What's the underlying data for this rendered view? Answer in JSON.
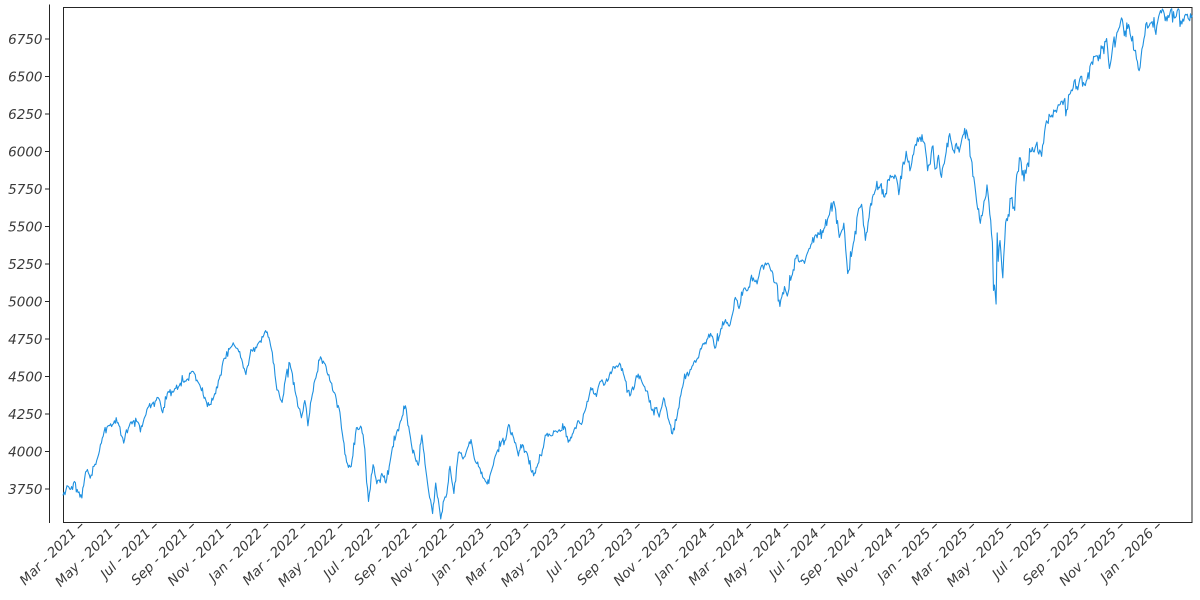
{
  "chart_data": {
    "type": "line",
    "title": "",
    "xlabel": "",
    "ylabel": "",
    "grid": false,
    "legend": null,
    "background": "#ffffff",
    "line_color": "#1E90E0",
    "frame_color": "#262626",
    "tick_label_color": "#3A3A3A",
    "y_tick_labels": [
      3750,
      4000,
      4250,
      4500,
      4750,
      5000,
      5250,
      5500,
      5750,
      6000,
      6250,
      6500,
      6750
    ],
    "x_tick_labels": [
      "Mar - 2021",
      "May - 2021",
      "Jul - 2021",
      "Sep - 2021",
      "Nov - 2021",
      "Jan - 2022",
      "Mar - 2022",
      "May - 2022",
      "Jul - 2022",
      "Sep - 2022",
      "Nov - 2022",
      "Jan - 2023",
      "Mar - 2023",
      "May - 2023",
      "Jul - 2023",
      "Sep - 2023",
      "Nov - 2023",
      "Jan - 2024",
      "Mar - 2024",
      "May - 2024",
      "Jul - 2024",
      "Sep - 2024",
      "Nov - 2024",
      "Jan - 2025",
      "Mar - 2025",
      "May - 2025",
      "Jul - 2025",
      "Sep - 2025",
      "Nov - 2025",
      "Jan - 2026"
    ],
    "x_tick_month_positions": [
      2,
      4,
      6,
      8,
      10,
      12,
      14,
      16,
      18,
      20,
      22,
      24,
      26,
      28,
      30,
      32,
      34,
      36,
      38,
      40,
      42,
      44,
      46,
      48,
      50,
      52,
      54,
      56,
      58,
      60
    ],
    "xlim_months_since_2021_01": [
      1.085,
      61.87
    ],
    "ylim": [
      3523,
      6963
    ],
    "points": [
      [
        1.09,
        3710
      ],
      [
        1.3,
        3772
      ],
      [
        1.5,
        3748
      ],
      [
        1.7,
        3800
      ],
      [
        1.9,
        3726
      ],
      [
        2.1,
        3690
      ],
      [
        2.25,
        3820
      ],
      [
        2.4,
        3880
      ],
      [
        2.55,
        3822
      ],
      [
        2.75,
        3900
      ],
      [
        2.95,
        3958
      ],
      [
        3.2,
        4090
      ],
      [
        3.5,
        4170
      ],
      [
        3.8,
        4185
      ],
      [
        4.05,
        4192
      ],
      [
        4.35,
        4056
      ],
      [
        4.6,
        4155
      ],
      [
        4.85,
        4200
      ],
      [
        5.15,
        4190
      ],
      [
        5.35,
        4166
      ],
      [
        5.6,
        4280
      ],
      [
        5.9,
        4320
      ],
      [
        6.2,
        4360
      ],
      [
        6.45,
        4258
      ],
      [
        6.75,
        4400
      ],
      [
        7.0,
        4395
      ],
      [
        7.35,
        4440
      ],
      [
        7.65,
        4470
      ],
      [
        8.05,
        4535
      ],
      [
        8.45,
        4443
      ],
      [
        8.68,
        4355
      ],
      [
        8.95,
        4307
      ],
      [
        9.2,
        4363
      ],
      [
        9.5,
        4486
      ],
      [
        9.75,
        4620
      ],
      [
        10.15,
        4698
      ],
      [
        10.45,
        4688
      ],
      [
        10.75,
        4594
      ],
      [
        10.93,
        4513
      ],
      [
        11.2,
        4680
      ],
      [
        11.55,
        4712
      ],
      [
        11.9,
        4778
      ],
      [
        12.08,
        4797
      ],
      [
        12.35,
        4660
      ],
      [
        12.6,
        4410
      ],
      [
        12.88,
        4327
      ],
      [
        13.1,
        4515
      ],
      [
        13.3,
        4587
      ],
      [
        13.62,
        4380
      ],
      [
        13.78,
        4288
      ],
      [
        13.92,
        4225
      ],
      [
        14.1,
        4340
      ],
      [
        14.27,
        4171
      ],
      [
        14.6,
        4456
      ],
      [
        14.95,
        4631
      ],
      [
        15.2,
        4583
      ],
      [
        15.5,
        4460
      ],
      [
        15.7,
        4392
      ],
      [
        15.95,
        4287
      ],
      [
        16.08,
        4155
      ],
      [
        16.35,
        3930
      ],
      [
        16.6,
        3900
      ],
      [
        16.88,
        4158
      ],
      [
        17.15,
        4160
      ],
      [
        17.33,
        4017
      ],
      [
        17.53,
        3667
      ],
      [
        17.78,
        3912
      ],
      [
        17.98,
        3785
      ],
      [
        18.25,
        3854
      ],
      [
        18.47,
        3790
      ],
      [
        18.78,
        3998
      ],
      [
        19.05,
        4130
      ],
      [
        19.3,
        4210
      ],
      [
        19.52,
        4305
      ],
      [
        19.83,
        4057
      ],
      [
        20.05,
        3955
      ],
      [
        20.22,
        3908
      ],
      [
        20.4,
        4110
      ],
      [
        20.62,
        3873
      ],
      [
        20.82,
        3693
      ],
      [
        20.98,
        3586
      ],
      [
        21.15,
        3790
      ],
      [
        21.42,
        3550
      ],
      [
        21.6,
        3677
      ],
      [
        21.75,
        3720
      ],
      [
        21.92,
        3901
      ],
      [
        22.13,
        3720
      ],
      [
        22.37,
        3993
      ],
      [
        22.62,
        3950
      ],
      [
        22.87,
        4026
      ],
      [
        23.05,
        4080
      ],
      [
        23.28,
        3934
      ],
      [
        23.5,
        3895
      ],
      [
        23.72,
        3822
      ],
      [
        23.92,
        3783
      ],
      [
        24.1,
        3853
      ],
      [
        24.45,
        3999
      ],
      [
        24.72,
        4070
      ],
      [
        24.92,
        4077
      ],
      [
        25.08,
        4180
      ],
      [
        25.35,
        4090
      ],
      [
        25.6,
        3970
      ],
      [
        25.82,
        4046
      ],
      [
        26.08,
        3986
      ],
      [
        26.32,
        3862
      ],
      [
        26.47,
        3856
      ],
      [
        26.65,
        3917
      ],
      [
        26.85,
        3971
      ],
      [
        27.05,
        4109
      ],
      [
        27.35,
        4105
      ],
      [
        27.6,
        4138
      ],
      [
        27.85,
        4134
      ],
      [
        28.08,
        4167
      ],
      [
        28.28,
        4061
      ],
      [
        28.55,
        4124
      ],
      [
        28.8,
        4205
      ],
      [
        29.0,
        4180
      ],
      [
        29.2,
        4274
      ],
      [
        29.5,
        4426
      ],
      [
        29.7,
        4381
      ],
      [
        29.95,
        4450
      ],
      [
        30.25,
        4446
      ],
      [
        30.5,
        4510
      ],
      [
        30.85,
        4567
      ],
      [
        31.05,
        4589
      ],
      [
        31.3,
        4501
      ],
      [
        31.6,
        4370
      ],
      [
        31.85,
        4433
      ],
      [
        32.05,
        4516
      ],
      [
        32.3,
        4450
      ],
      [
        32.55,
        4402
      ],
      [
        32.8,
        4274
      ],
      [
        33.0,
        4288
      ],
      [
        33.18,
        4229
      ],
      [
        33.42,
        4358
      ],
      [
        33.65,
        4224
      ],
      [
        33.9,
        4117
      ],
      [
        34.15,
        4238
      ],
      [
        34.4,
        4415
      ],
      [
        34.65,
        4514
      ],
      [
        34.95,
        4568
      ],
      [
        35.15,
        4594
      ],
      [
        35.5,
        4707
      ],
      [
        35.8,
        4754
      ],
      [
        36.0,
        4770
      ],
      [
        36.18,
        4688
      ],
      [
        36.45,
        4780
      ],
      [
        36.7,
        4864
      ],
      [
        37.0,
        4846
      ],
      [
        37.28,
        5027
      ],
      [
        37.48,
        4953
      ],
      [
        37.75,
        5089
      ],
      [
        38.0,
        5096
      ],
      [
        38.25,
        5157
      ],
      [
        38.45,
        5117
      ],
      [
        38.7,
        5241
      ],
      [
        39.0,
        5254
      ],
      [
        39.25,
        5205
      ],
      [
        39.5,
        5123
      ],
      [
        39.68,
        4967
      ],
      [
        39.93,
        5100
      ],
      [
        40.08,
        5036
      ],
      [
        40.35,
        5180
      ],
      [
        40.58,
        5308
      ],
      [
        40.83,
        5267
      ],
      [
        41.05,
        5278
      ],
      [
        41.3,
        5354
      ],
      [
        41.55,
        5434
      ],
      [
        41.82,
        5448
      ],
      [
        42.0,
        5460
      ],
      [
        42.3,
        5567
      ],
      [
        42.58,
        5667
      ],
      [
        42.88,
        5427
      ],
      [
        43.12,
        5522
      ],
      [
        43.22,
        5346
      ],
      [
        43.33,
        5186
      ],
      [
        43.58,
        5344
      ],
      [
        43.92,
        5620
      ],
      [
        44.08,
        5648
      ],
      [
        44.28,
        5408
      ],
      [
        44.53,
        5626
      ],
      [
        44.75,
        5714
      ],
      [
        45.0,
        5762
      ],
      [
        45.32,
        5696
      ],
      [
        45.62,
        5841
      ],
      [
        45.92,
        5833
      ],
      [
        46.08,
        5712
      ],
      [
        46.32,
        5929
      ],
      [
        46.48,
        6001
      ],
      [
        46.68,
        5871
      ],
      [
        46.93,
        6032
      ],
      [
        47.18,
        6090
      ],
      [
        47.48,
        6051
      ],
      [
        47.63,
        5872
      ],
      [
        47.92,
        6038
      ],
      [
        48.03,
        5882
      ],
      [
        48.22,
        5975
      ],
      [
        48.38,
        5827
      ],
      [
        48.63,
        5997
      ],
      [
        48.82,
        6119
      ],
      [
        48.98,
        6012
      ],
      [
        49.13,
        6041
      ],
      [
        49.38,
        6026
      ],
      [
        49.58,
        6115
      ],
      [
        49.72,
        6144
      ],
      [
        49.97,
        5954
      ],
      [
        50.17,
        5778
      ],
      [
        50.33,
        5615
      ],
      [
        50.47,
        5521
      ],
      [
        50.67,
        5668
      ],
      [
        50.83,
        5777
      ],
      [
        50.98,
        5581
      ],
      [
        51.12,
        5396
      ],
      [
        51.18,
        5074
      ],
      [
        51.27,
        5062
      ],
      [
        51.32,
        4983
      ],
      [
        51.38,
        5457
      ],
      [
        51.43,
        5268
      ],
      [
        51.53,
        5406
      ],
      [
        51.68,
        5158
      ],
      [
        51.83,
        5525
      ],
      [
        52.02,
        5569
      ],
      [
        52.13,
        5687
      ],
      [
        52.32,
        5607
      ],
      [
        52.43,
        5844
      ],
      [
        52.62,
        5958
      ],
      [
        52.82,
        5803
      ],
      [
        52.98,
        5912
      ],
      [
        53.22,
        6000
      ],
      [
        53.47,
        6045
      ],
      [
        53.62,
        5983
      ],
      [
        53.77,
        5968
      ],
      [
        53.98,
        6173
      ],
      [
        54.03,
        6205
      ],
      [
        54.27,
        6230
      ],
      [
        54.47,
        6268
      ],
      [
        54.72,
        6309
      ],
      [
        54.97,
        6339
      ],
      [
        55.07,
        6238
      ],
      [
        55.32,
        6389
      ],
      [
        55.52,
        6469
      ],
      [
        55.72,
        6411
      ],
      [
        55.88,
        6501
      ],
      [
        56.02,
        6460
      ],
      [
        56.22,
        6481
      ],
      [
        56.42,
        6587
      ],
      [
        56.62,
        6632
      ],
      [
        56.82,
        6605
      ],
      [
        57.02,
        6688
      ],
      [
        57.27,
        6753
      ],
      [
        57.42,
        6553
      ],
      [
        57.57,
        6671
      ],
      [
        57.82,
        6792
      ],
      [
        58.07,
        6891
      ],
      [
        58.22,
        6772
      ],
      [
        58.45,
        6847
      ],
      [
        58.62,
        6737
      ],
      [
        58.77,
        6672
      ],
      [
        58.88,
        6617
      ],
      [
        59.02,
        6539
      ],
      [
        59.22,
        6705
      ],
      [
        59.38,
        6849
      ],
      [
        59.52,
        6829
      ],
      [
        59.72,
        6866
      ],
      [
        59.92,
        6781
      ],
      [
        60.12,
        6921
      ],
      [
        60.32,
        6940
      ],
      [
        60.52,
        6870
      ],
      [
        60.72,
        6945
      ],
      [
        60.92,
        6890
      ],
      [
        61.12,
        6955
      ],
      [
        61.32,
        6850
      ],
      [
        61.52,
        6915
      ],
      [
        61.7,
        6880
      ],
      [
        61.87,
        6905
      ]
    ]
  }
}
